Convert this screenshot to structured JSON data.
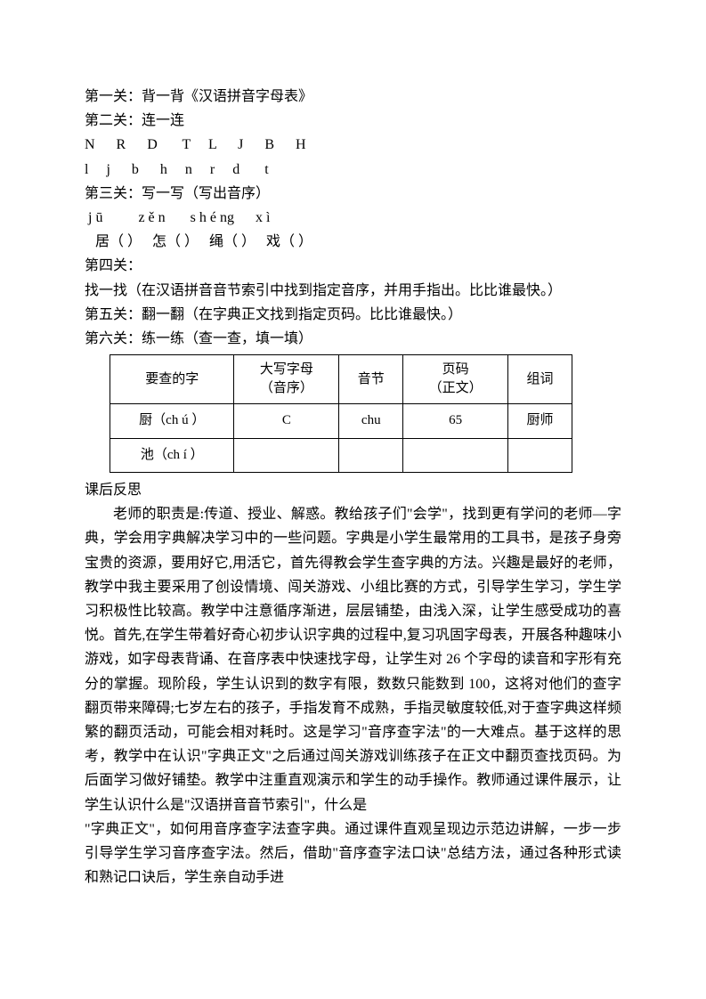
{
  "level1": "第一关：背一背《汉语拼音字母表》",
  "level2": "第二关：连一连",
  "row_upper": "N      R      D       T     L      J      B      H",
  "row_lower": "l     j      b      h     n     r     d       t",
  "level3": "第三关：写一写（写出音序）",
  "pinyin_row": " j ū          z ě n       s h é ng      x ì",
  "blank_row": "   居（ ）   怎（ ）   绳（ ）   戏（ ）",
  "level4": "第四关：",
  "level4_desc": "找一找（在汉语拼音音节索引中找到指定音序，并用手指出。比比谁最快。）",
  "level5": "第五关：翻一翻（在字典正文找到指定页码。比比谁最快。）",
  "level6": "第六关：练一练（查一查，填一填）",
  "table": {
    "headers": {
      "c1": "要查的字",
      "c2a": "大写字母",
      "c2b": "（音序）",
      "c3": "音节",
      "c4a": "页码",
      "c4b": "（正文）",
      "c5": "组词"
    },
    "r1": {
      "c1": "厨（ch ú ）",
      "c2": "C",
      "c3": "chu",
      "c4": "65",
      "c5": "厨师"
    },
    "r2": {
      "c1": "池（ch í ）",
      "c2": "",
      "c3": "",
      "c4": "",
      "c5": ""
    }
  },
  "reflection_title": "课后反思",
  "reflection_p1": "老师的职责是:传道、授业、解惑。教给孩子们\"会学\"，找到更有学问的老师—字典，学会用字典解决学习中的一些问题。字典是小学生最常用的工具书，是孩子身旁宝贵的资源，要用好它,用活它，首先得教会学生查字典的方法。兴趣是最好的老师，教学中我主要采用了创设情境、闯关游戏、小组比赛的方式，引导学生学习，学生学习积极性比较高。教学中注意循序渐进，层层铺垫，由浅入深，让学生感受成功的喜悦。首先,在学生带着好奇心初步认识字典的过程中,复习巩固字母表，开展各种趣味小游戏，如字母表背诵、在音序表中快速找字母，让学生对 26 个字母的读音和字形有充分的掌握。现阶段，学生认识到的数字有限，数数只能数到 100，这将对他们的查字翻页带来障碍;七岁左右的孩子，手指发育不成熟，手指灵敏度较低,对于查字典这样频繁的翻页活动，可能会相对耗时。这是学习\"音序查字法\"的一大难点。基于这样的思考，教学中在认识\"字典正文\"之后通过闯关游戏训练孩子在正文中翻页查找页码。为后面学习做好铺垫。教学中注重直观演示和学生的动手操作。教师通过课件展示，让学生认识什么是\"汉语拼音音节索引\"，什么是",
  "reflection_p2": "\"字典正文\"，如何用音序查字法查字典。通过课件直观呈现边示范边讲解，一步一步引导学生学习音序查字法。然后，借助\"音序查字法口诀\"总结方法，通过各种形式读和熟记口诀后，学生亲自动手进"
}
